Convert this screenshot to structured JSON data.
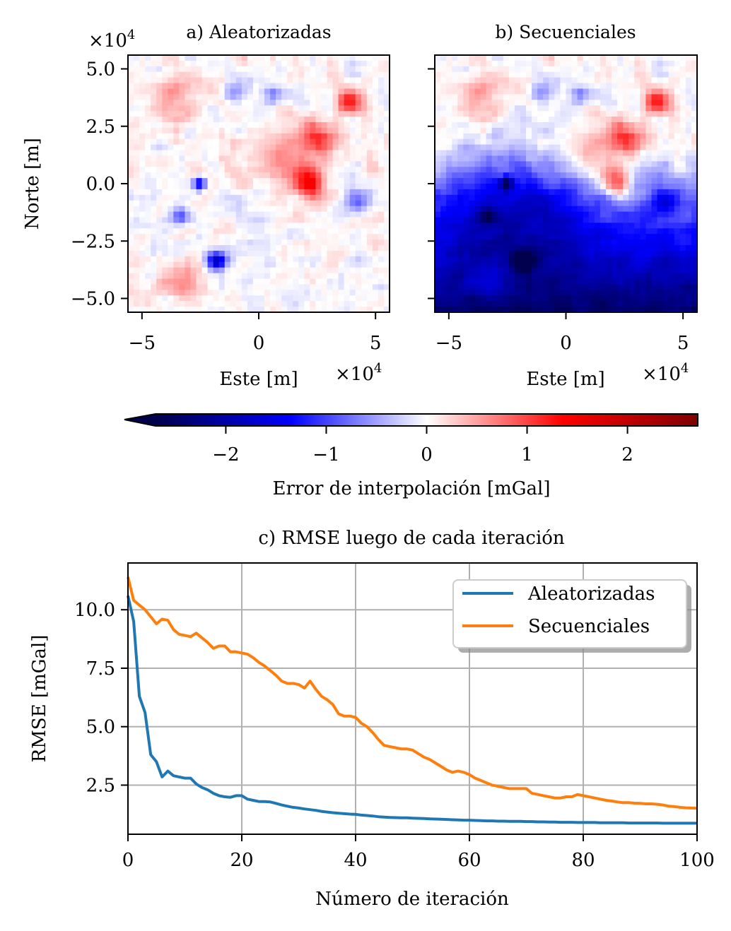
{
  "heatmaps": {
    "panel_a": {
      "title": "a) Aleatorizadas",
      "ylabel": "Norte [m]",
      "xlabel": "Este [m]",
      "offset_text_x": "×10^4",
      "offset_text_y": "×10^4"
    },
    "panel_b": {
      "title": "b) Secuenciales",
      "xlabel": "Este [m]",
      "offset_text_x": "×10^4"
    },
    "x_ticks": [
      "−5",
      "0",
      "5"
    ],
    "y_ticks": [
      "5.0",
      "2.5",
      "0.0",
      "−2.5",
      "−5.0"
    ],
    "colorbar": {
      "label": "Error de interpolación [mGal]",
      "ticks": [
        "−2",
        "−1",
        "0",
        "1",
        "2"
      ],
      "colormap": "seismic",
      "colors": [
        "#00004c",
        "#0000ff",
        "#ffffff",
        "#ff0000",
        "#800000"
      ]
    }
  },
  "chart_data": [
    {
      "type": "heatmap",
      "title": "a) Aleatorizadas",
      "xlabel": "Este [m]",
      "ylabel": "Norte [m]",
      "xlim": [
        -56000,
        56000
      ],
      "ylim": [
        -56000,
        56000
      ],
      "value_range": [
        -2.7,
        2.7
      ]
    },
    {
      "type": "heatmap",
      "title": "b) Secuenciales",
      "xlabel": "Este [m]",
      "xlim": [
        -56000,
        56000
      ],
      "ylim": [
        -56000,
        56000
      ],
      "value_range": [
        -2.7,
        2.7
      ]
    },
    {
      "type": "line",
      "title": "c) RMSE luego de cada iteración",
      "xlabel": "Número de iteración",
      "ylabel": "RMSE [mGal]",
      "xlim": [
        0,
        100
      ],
      "ylim": [
        0.4,
        12.0
      ],
      "x_ticks": [
        "0",
        "20",
        "40",
        "60",
        "80",
        "100"
      ],
      "y_ticks": [
        "2.5",
        "5.0",
        "7.5",
        "10.0"
      ],
      "grid": true,
      "legend_position": "top-right",
      "series": [
        {
          "name": "Aleatorizadas",
          "color": "#1f77b4",
          "x": [
            0,
            1,
            2,
            3,
            4,
            5,
            6,
            7,
            8,
            9,
            10,
            11,
            12,
            13,
            14,
            15,
            16,
            17,
            18,
            19,
            20,
            21,
            22,
            23,
            24,
            25,
            26,
            27,
            28,
            29,
            30,
            31,
            32,
            33,
            34,
            35,
            36,
            37,
            38,
            39,
            40,
            41,
            42,
            43,
            44,
            45,
            46,
            47,
            48,
            49,
            50,
            51,
            52,
            53,
            54,
            55,
            56,
            57,
            58,
            59,
            60,
            61,
            62,
            63,
            64,
            65,
            66,
            67,
            68,
            69,
            70,
            71,
            72,
            73,
            74,
            75,
            76,
            77,
            78,
            79,
            80,
            81,
            82,
            83,
            84,
            85,
            86,
            87,
            88,
            89,
            90,
            91,
            92,
            93,
            94,
            95,
            96,
            97,
            98,
            99,
            100
          ],
          "y": [
            10.6,
            9.5,
            6.3,
            5.6,
            3.8,
            3.5,
            2.85,
            3.1,
            2.9,
            2.85,
            2.8,
            2.8,
            2.55,
            2.4,
            2.3,
            2.15,
            2.05,
            2.0,
            1.98,
            2.05,
            2.05,
            1.9,
            1.85,
            1.8,
            1.8,
            1.78,
            1.72,
            1.65,
            1.6,
            1.55,
            1.52,
            1.48,
            1.45,
            1.42,
            1.38,
            1.35,
            1.32,
            1.3,
            1.28,
            1.26,
            1.25,
            1.22,
            1.2,
            1.18,
            1.15,
            1.13,
            1.12,
            1.11,
            1.1,
            1.1,
            1.09,
            1.08,
            1.07,
            1.06,
            1.05,
            1.04,
            1.03,
            1.02,
            1.01,
            1.0,
            1.0,
            0.99,
            0.98,
            0.97,
            0.97,
            0.96,
            0.96,
            0.95,
            0.95,
            0.95,
            0.94,
            0.94,
            0.93,
            0.93,
            0.92,
            0.92,
            0.91,
            0.91,
            0.91,
            0.9,
            0.9,
            0.9,
            0.9,
            0.89,
            0.89,
            0.89,
            0.89,
            0.89,
            0.88,
            0.88,
            0.88,
            0.88,
            0.88,
            0.88,
            0.87,
            0.87,
            0.87,
            0.87,
            0.87,
            0.87,
            0.87
          ]
        },
        {
          "name": "Secuenciales",
          "color": "#ff7f0e",
          "x": [
            0,
            1,
            2,
            3,
            4,
            5,
            6,
            7,
            8,
            9,
            10,
            11,
            12,
            13,
            14,
            15,
            16,
            17,
            18,
            19,
            20,
            21,
            22,
            23,
            24,
            25,
            26,
            27,
            28,
            29,
            30,
            31,
            32,
            33,
            34,
            35,
            36,
            37,
            38,
            39,
            40,
            41,
            42,
            43,
            44,
            45,
            46,
            47,
            48,
            49,
            50,
            51,
            52,
            53,
            54,
            55,
            56,
            57,
            58,
            59,
            60,
            61,
            62,
            63,
            64,
            65,
            66,
            67,
            68,
            69,
            70,
            71,
            72,
            73,
            74,
            75,
            76,
            77,
            78,
            79,
            80,
            81,
            82,
            83,
            84,
            85,
            86,
            87,
            88,
            89,
            90,
            91,
            92,
            93,
            94,
            95,
            96,
            97,
            98,
            99,
            100
          ],
          "y": [
            11.4,
            10.4,
            10.2,
            10.0,
            9.7,
            9.4,
            9.6,
            9.55,
            9.15,
            8.95,
            8.9,
            8.85,
            9.0,
            8.8,
            8.6,
            8.35,
            8.45,
            8.45,
            8.2,
            8.2,
            8.15,
            8.1,
            7.95,
            7.75,
            7.6,
            7.4,
            7.2,
            6.95,
            6.85,
            6.85,
            6.8,
            6.65,
            6.95,
            6.6,
            6.3,
            6.15,
            5.95,
            5.55,
            5.45,
            5.45,
            5.4,
            5.15,
            5.0,
            4.75,
            4.45,
            4.2,
            4.15,
            4.1,
            4.05,
            4.05,
            4.0,
            3.85,
            3.7,
            3.6,
            3.45,
            3.3,
            3.15,
            3.05,
            3.1,
            3.05,
            2.95,
            2.8,
            2.7,
            2.6,
            2.5,
            2.45,
            2.4,
            2.35,
            2.35,
            2.35,
            2.35,
            2.15,
            2.1,
            2.05,
            2.0,
            1.95,
            1.95,
            2.0,
            2.0,
            2.1,
            2.05,
            2.0,
            1.95,
            1.9,
            1.85,
            1.82,
            1.78,
            1.75,
            1.75,
            1.73,
            1.72,
            1.7,
            1.7,
            1.68,
            1.65,
            1.6,
            1.58,
            1.55,
            1.53,
            1.52,
            1.51
          ]
        }
      ]
    }
  ]
}
